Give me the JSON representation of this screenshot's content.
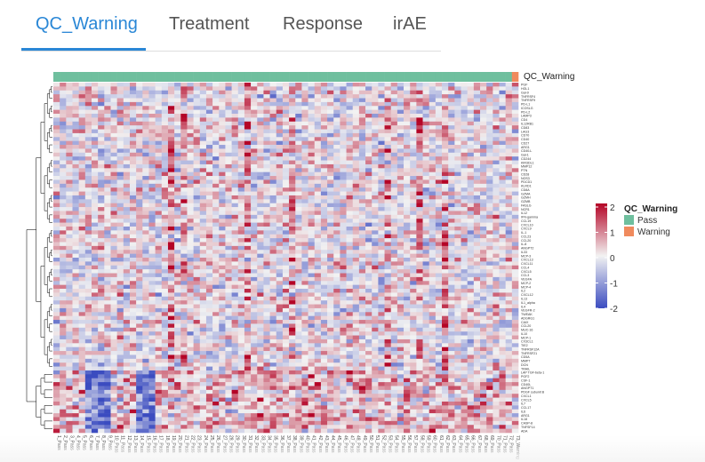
{
  "tabs": [
    {
      "label": "QC_Warning",
      "active": true
    },
    {
      "label": "Treatment",
      "active": false
    },
    {
      "label": "Response",
      "active": false
    },
    {
      "label": "irAE",
      "active": false
    }
  ],
  "chart_data": {
    "type": "heatmap",
    "annotation_title": "QC_Warning",
    "legend": {
      "title": "QC_Warning",
      "entries": [
        {
          "label": "Pass",
          "color": "#6fbf9e"
        },
        {
          "label": "Warning",
          "color": "#f08a5d"
        }
      ]
    },
    "color_scale": {
      "ticks": [
        "2",
        "1",
        "0",
        "-1",
        "-2"
      ],
      "min": -2,
      "max": 2,
      "low_color": "#3b4cc0",
      "mid_color": "#f2f2f2",
      "high_color": "#b40426"
    },
    "columns": [
      "1_Pass",
      "2_Pass",
      "3_Pass",
      "4_Pass",
      "5_Pass",
      "6_Pass",
      "7_Pass",
      "8_Pass",
      "9_Pass",
      "10_Pass",
      "11_Pass",
      "12_Pass",
      "13_Pass",
      "14_Pass",
      "15_Pass",
      "16_Pass",
      "17_Pass",
      "18_Pass",
      "19_Pass",
      "20_Pass",
      "21_Pass",
      "22_Pass",
      "23_Pass",
      "24_Pass",
      "25_Pass",
      "26_Pass",
      "27_Pass",
      "28_Pass",
      "29_Pass",
      "30_Pass",
      "31_Pass",
      "32_Pass",
      "33_Pass",
      "34_Pass",
      "35_Pass",
      "36_Pass",
      "37_Pass",
      "38_Pass",
      "39_Pass",
      "40_Pass",
      "41_Pass",
      "42_Pass",
      "43_Pass",
      "44_Pass",
      "45_Pass",
      "46_Pass",
      "47_Pass",
      "48_Pass",
      "49_Pass",
      "50_Pass",
      "51_Pass",
      "52_Pass",
      "53_Pass",
      "54_Pass",
      "55_Pass",
      "56_Pass",
      "57_Pass",
      "58_Pass",
      "59_Pass",
      "60_Pass",
      "61_Pass",
      "62_Pass",
      "63_Pass",
      "64_Pass",
      "65_Pass",
      "66_Pass",
      "67_Pass",
      "68_Pass",
      "69_Pass",
      "70_Pass",
      "71_Pass",
      "72_Pass",
      "73_Warning"
    ],
    "rows": [
      "PGF",
      "HGL1",
      "Gal-9",
      "TNFRSF4",
      "TNFRSF9",
      "PD-L1",
      "ICOSLG",
      "PD-L2",
      "LAMP3",
      "CD4",
      "IL12RB1",
      "CD83",
      "LAG3",
      "CD70",
      "CD40",
      "CD27",
      "ARG1",
      "CD40-L",
      "Gal-1",
      "CD244",
      "KIR3DL1",
      "MMP12",
      "PTN",
      "CD28",
      "NOS3",
      "PDCD1",
      "KLRD1",
      "CD8A",
      "GZMA",
      "GZMH",
      "GZMB",
      "FASLG",
      "NCR1",
      "IL12",
      "IFN-gamma",
      "CCL19",
      "CXCL10",
      "CXCL9",
      "IL-1",
      "CCL23",
      "CCL20",
      "IL-8",
      "ANGPT2",
      "IL33",
      "MCP-3",
      "CXCL13",
      "CXCL11",
      "CCL4",
      "CXCL5",
      "CCL3",
      "VEGFA",
      "MCP-2",
      "MCP-4",
      "IL2",
      "CXCL12",
      "IL13",
      "IL1_alpha",
      "IL4",
      "VEGFR-2",
      "TWEAK",
      "ADGRG1",
      "CAIX",
      "CCL20",
      "MUC-16",
      "IL10",
      "MCP-1",
      "CX3CL1",
      "TIE2",
      "TNFRSF12A",
      "TNFRSF21",
      "CD5A",
      "MMP7",
      "DCN",
      "TRAIL",
      "LAP TGF-beta-1",
      "PGF2",
      "CSF-1",
      "CD40L",
      "ANGPT1",
      "PDGF subunit B",
      "CXCL1",
      "CXCL5",
      "IL7",
      "CCL17",
      "IL6",
      "ARG1",
      "IL18",
      "CASP-8",
      "TNFSF14",
      "ADA"
    ],
    "row_clusters": [
      {
        "name": "upper",
        "rows": [
          0,
          73
        ],
        "noise": 0.9
      },
      {
        "name": "lower",
        "rows": [
          74,
          89
        ],
        "noise": 0.8
      }
    ],
    "high_columns_upper": [
      18,
      20,
      30,
      37,
      52,
      57,
      61
    ],
    "low_columns_lower": [
      5,
      6,
      7,
      8,
      13,
      14,
      15
    ]
  }
}
